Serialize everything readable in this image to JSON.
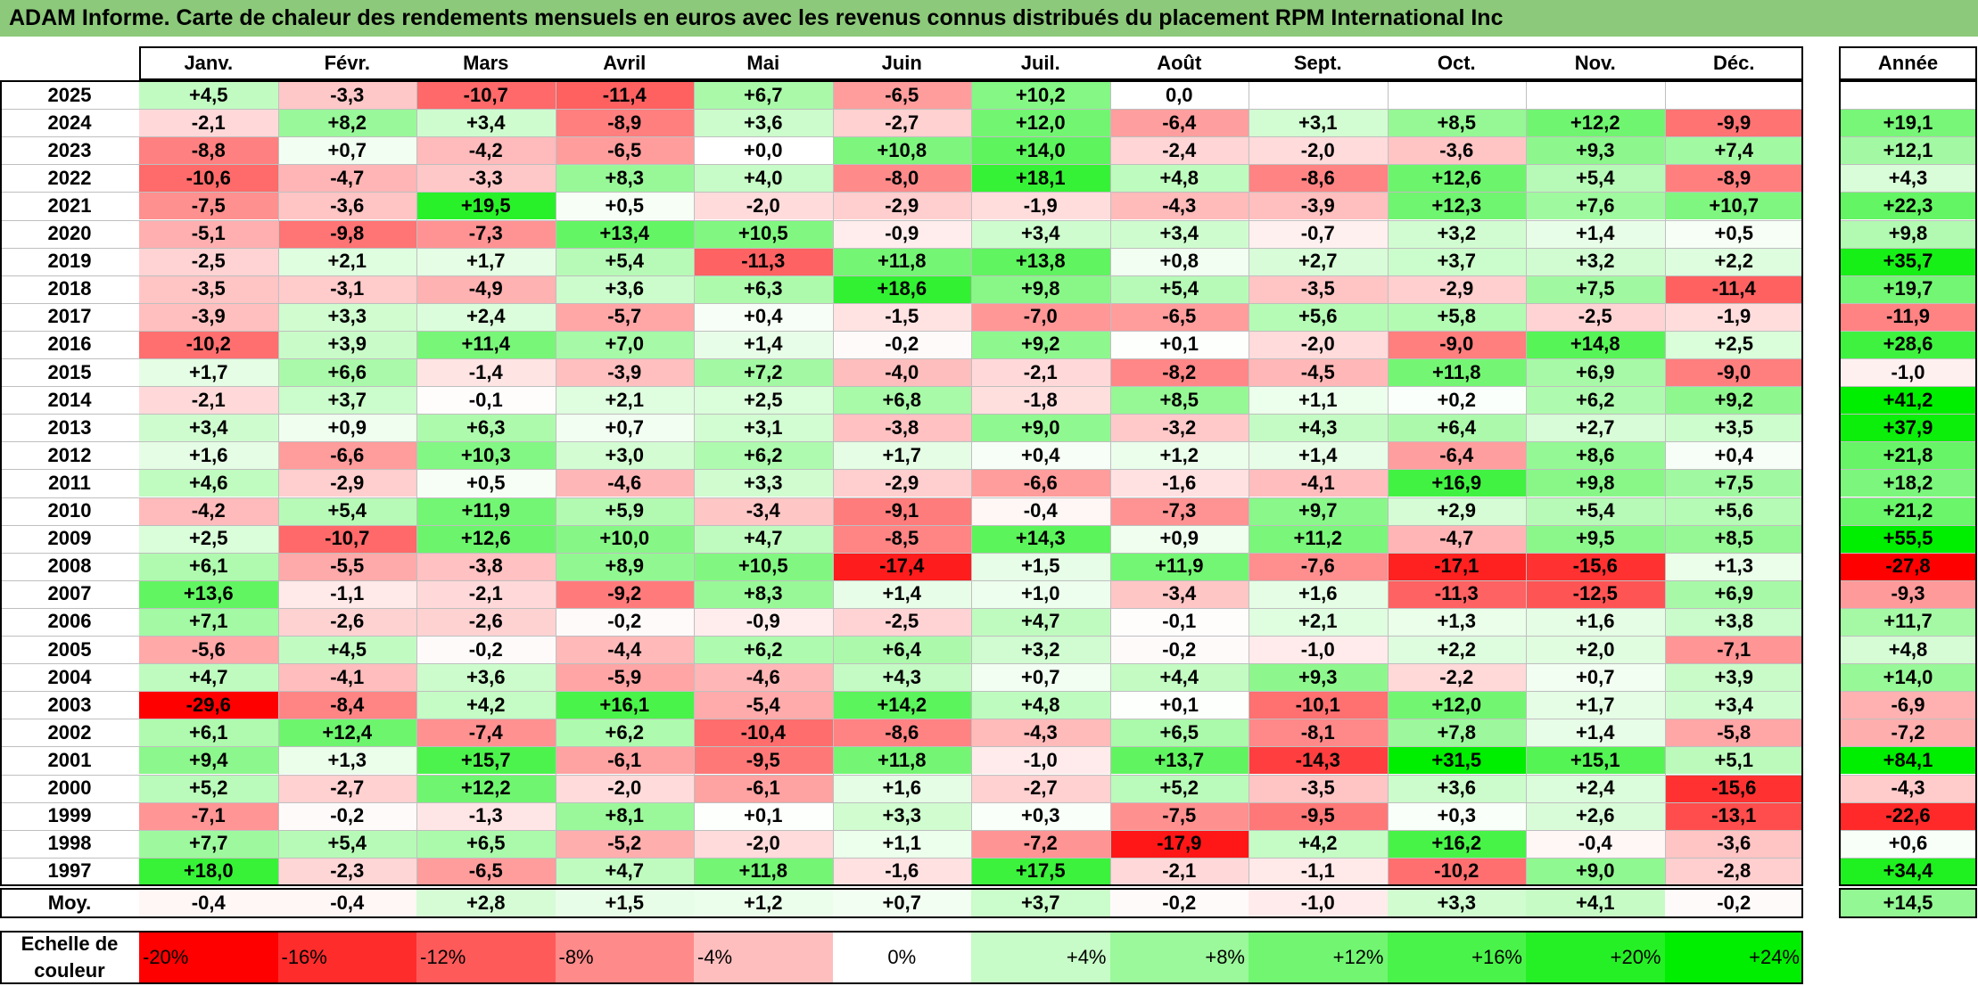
{
  "title": "ADAM Informe. Carte de chaleur des rendements mensuels en euros avec les revenus connus distribués du placement RPM International Inc",
  "colors": {
    "title_bg": "#8cc97a",
    "negative_max": "#ff0000",
    "positive_max": "#00ee00",
    "neutral": "#ffffff"
  },
  "chart_data": {
    "type": "heatmap",
    "months": [
      "Janv.",
      "Févr.",
      "Mars",
      "Avril",
      "Mai",
      "Juin",
      "Juil.",
      "Août",
      "Sept.",
      "Oct.",
      "Nov.",
      "Déc."
    ],
    "year_header": "Année",
    "rows": [
      {
        "year": "2025",
        "values": [
          "+4,5",
          "-3,3",
          "-10,7",
          "-11,4",
          "+6,7",
          "-6,5",
          "+10,2",
          "0,0",
          "",
          "",
          "",
          ""
        ],
        "annual": ""
      },
      {
        "year": "2024",
        "values": [
          "-2,1",
          "+8,2",
          "+3,4",
          "-8,9",
          "+3,6",
          "-2,7",
          "+12,0",
          "-6,4",
          "+3,1",
          "+8,5",
          "+12,2",
          "-9,9"
        ],
        "annual": "+19,1"
      },
      {
        "year": "2023",
        "values": [
          "-8,8",
          "+0,7",
          "-4,2",
          "-6,5",
          "+0,0",
          "+10,8",
          "+14,0",
          "-2,4",
          "-2,0",
          "-3,6",
          "+9,3",
          "+7,4"
        ],
        "annual": "+12,1"
      },
      {
        "year": "2022",
        "values": [
          "-10,6",
          "-4,7",
          "-3,3",
          "+8,3",
          "+4,0",
          "-8,0",
          "+18,1",
          "+4,8",
          "-8,6",
          "+12,6",
          "+5,4",
          "-8,9"
        ],
        "annual": "+4,3"
      },
      {
        "year": "2021",
        "values": [
          "-7,5",
          "-3,6",
          "+19,5",
          "+0,5",
          "-2,0",
          "-2,9",
          "-1,9",
          "-4,3",
          "-3,9",
          "+12,3",
          "+7,6",
          "+10,7"
        ],
        "annual": "+22,3"
      },
      {
        "year": "2020",
        "values": [
          "-5,1",
          "-9,8",
          "-7,3",
          "+13,4",
          "+10,5",
          "-0,9",
          "+3,4",
          "+3,4",
          "-0,7",
          "+3,2",
          "+1,4",
          "+0,5"
        ],
        "annual": "+9,8"
      },
      {
        "year": "2019",
        "values": [
          "-2,5",
          "+2,1",
          "+1,7",
          "+5,4",
          "-11,3",
          "+11,8",
          "+13,8",
          "+0,8",
          "+2,7",
          "+3,7",
          "+3,2",
          "+2,2"
        ],
        "annual": "+35,7"
      },
      {
        "year": "2018",
        "values": [
          "-3,5",
          "-3,1",
          "-4,9",
          "+3,6",
          "+6,3",
          "+18,6",
          "+9,8",
          "+5,4",
          "-3,5",
          "-2,9",
          "+7,5",
          "-11,4"
        ],
        "annual": "+19,7"
      },
      {
        "year": "2017",
        "values": [
          "-3,9",
          "+3,3",
          "+2,4",
          "-5,7",
          "+0,4",
          "-1,5",
          "-7,0",
          "-6,5",
          "+5,6",
          "+5,8",
          "-2,5",
          "-1,9"
        ],
        "annual": "-11,9"
      },
      {
        "year": "2016",
        "values": [
          "-10,2",
          "+3,9",
          "+11,4",
          "+7,0",
          "+1,4",
          "-0,2",
          "+9,2",
          "+0,1",
          "-2,0",
          "-9,0",
          "+14,8",
          "+2,5"
        ],
        "annual": "+28,6"
      },
      {
        "year": "2015",
        "values": [
          "+1,7",
          "+6,6",
          "-1,4",
          "-3,9",
          "+7,2",
          "-4,0",
          "-2,1",
          "-8,2",
          "-4,5",
          "+11,8",
          "+6,9",
          "-9,0"
        ],
        "annual": "-1,0"
      },
      {
        "year": "2014",
        "values": [
          "-2,1",
          "+3,7",
          "-0,1",
          "+2,1",
          "+2,5",
          "+6,8",
          "-1,8",
          "+8,5",
          "+1,1",
          "+0,2",
          "+6,2",
          "+9,2"
        ],
        "annual": "+41,2"
      },
      {
        "year": "2013",
        "values": [
          "+3,4",
          "+0,9",
          "+6,3",
          "+0,7",
          "+3,1",
          "-3,8",
          "+9,0",
          "-3,2",
          "+4,3",
          "+6,4",
          "+2,7",
          "+3,5"
        ],
        "annual": "+37,9"
      },
      {
        "year": "2012",
        "values": [
          "+1,6",
          "-6,6",
          "+10,3",
          "+3,0",
          "+6,2",
          "+1,7",
          "+0,4",
          "+1,2",
          "+1,4",
          "-6,4",
          "+8,6",
          "+0,4"
        ],
        "annual": "+21,8"
      },
      {
        "year": "2011",
        "values": [
          "+4,6",
          "-2,9",
          "+0,5",
          "-4,6",
          "+3,3",
          "-2,9",
          "-6,6",
          "-1,6",
          "-4,1",
          "+16,9",
          "+9,8",
          "+7,5"
        ],
        "annual": "+18,2"
      },
      {
        "year": "2010",
        "values": [
          "-4,2",
          "+5,4",
          "+11,9",
          "+5,9",
          "-3,4",
          "-9,1",
          "-0,4",
          "-7,3",
          "+9,7",
          "+2,9",
          "+5,4",
          "+5,6"
        ],
        "annual": "+21,2"
      },
      {
        "year": "2009",
        "values": [
          "+2,5",
          "-10,7",
          "+12,6",
          "+10,0",
          "+4,7",
          "-8,5",
          "+14,3",
          "+0,9",
          "+11,2",
          "-4,7",
          "+9,5",
          "+8,5"
        ],
        "annual": "+55,5"
      },
      {
        "year": "2008",
        "values": [
          "+6,1",
          "-5,5",
          "-3,8",
          "+8,9",
          "+10,5",
          "-17,4",
          "+1,5",
          "+11,9",
          "-7,6",
          "-17,1",
          "-15,6",
          "+1,3"
        ],
        "annual": "-27,8"
      },
      {
        "year": "2007",
        "values": [
          "+13,6",
          "-1,1",
          "-2,1",
          "-9,2",
          "+8,3",
          "+1,4",
          "+1,0",
          "-3,4",
          "+1,6",
          "-11,3",
          "-12,5",
          "+6,9"
        ],
        "annual": "-9,3"
      },
      {
        "year": "2006",
        "values": [
          "+7,1",
          "-2,6",
          "-2,6",
          "-0,2",
          "-0,9",
          "-2,5",
          "+4,7",
          "-0,1",
          "+2,1",
          "+1,3",
          "+1,6",
          "+3,8"
        ],
        "annual": "+11,7"
      },
      {
        "year": "2005",
        "values": [
          "-5,6",
          "+4,5",
          "-0,2",
          "-4,4",
          "+6,2",
          "+6,4",
          "+3,2",
          "-0,2",
          "-1,0",
          "+2,2",
          "+2,0",
          "-7,1"
        ],
        "annual": "+4,8"
      },
      {
        "year": "2004",
        "values": [
          "+4,7",
          "-4,1",
          "+3,6",
          "-5,9",
          "-4,6",
          "+4,3",
          "+0,7",
          "+4,4",
          "+9,3",
          "-2,2",
          "+0,7",
          "+3,9"
        ],
        "annual": "+14,0"
      },
      {
        "year": "2003",
        "values": [
          "-29,6",
          "-8,4",
          "+4,2",
          "+16,1",
          "-5,4",
          "+14,2",
          "+4,8",
          "+0,1",
          "-10,1",
          "+12,0",
          "+1,7",
          "+3,4"
        ],
        "annual": "-6,9"
      },
      {
        "year": "2002",
        "values": [
          "+6,1",
          "+12,4",
          "-7,4",
          "+6,2",
          "-10,4",
          "-8,6",
          "-4,3",
          "+6,5",
          "-8,1",
          "+7,8",
          "+1,4",
          "-5,8"
        ],
        "annual": "-7,2"
      },
      {
        "year": "2001",
        "values": [
          "+9,4",
          "+1,3",
          "+15,7",
          "-6,1",
          "-9,5",
          "+11,8",
          "-1,0",
          "+13,7",
          "-14,3",
          "+31,5",
          "+15,1",
          "+5,1"
        ],
        "annual": "+84,1"
      },
      {
        "year": "2000",
        "values": [
          "+5,2",
          "-2,7",
          "+12,2",
          "-2,0",
          "-6,1",
          "+1,6",
          "-2,7",
          "+5,2",
          "-3,5",
          "+3,6",
          "+2,4",
          "-15,6"
        ],
        "annual": "-4,3"
      },
      {
        "year": "1999",
        "values": [
          "-7,1",
          "-0,2",
          "-1,3",
          "+8,1",
          "+0,1",
          "+3,3",
          "+0,3",
          "-7,5",
          "-9,5",
          "+0,3",
          "+2,6",
          "-13,1"
        ],
        "annual": "-22,6"
      },
      {
        "year": "1998",
        "values": [
          "+7,7",
          "+5,4",
          "+6,5",
          "-5,2",
          "-2,0",
          "+1,1",
          "-7,2",
          "-17,9",
          "+4,2",
          "+16,2",
          "-0,4",
          "-3,6"
        ],
        "annual": "+0,6"
      },
      {
        "year": "1997",
        "values": [
          "+18,0",
          "-2,3",
          "-6,5",
          "+4,7",
          "+11,8",
          "-1,6",
          "+17,5",
          "-2,1",
          "-1,1",
          "-10,2",
          "+9,0",
          "-2,8"
        ],
        "annual": "+34,4"
      }
    ],
    "average": {
      "label": "Moy.",
      "values": [
        "-0,4",
        "-0,4",
        "+2,8",
        "+1,5",
        "+1,2",
        "+0,7",
        "+3,7",
        "-0,2",
        "-1,0",
        "+3,3",
        "+4,1",
        "-0,2"
      ],
      "annual": "+14,5"
    },
    "scale": {
      "label_line1": "Echelle de",
      "label_line2": "couleur",
      "steps": [
        "-20%",
        "-16%",
        "-12%",
        "-8%",
        "-4%",
        "0%",
        "+4%",
        "+8%",
        "+12%",
        "+16%",
        "+20%",
        "+24%"
      ]
    }
  }
}
